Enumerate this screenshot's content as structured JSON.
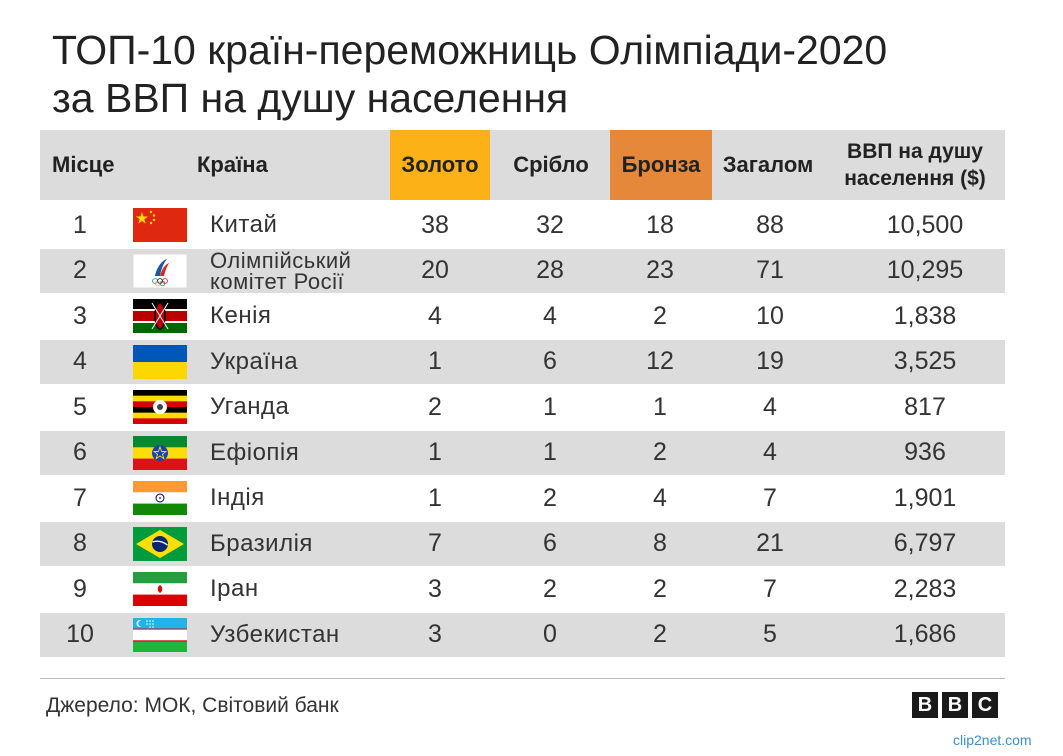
{
  "title_line1": "ТОП-10 країн-переможниць Олімпіади-2020",
  "title_line2": "за ВВП на душу населення",
  "headers": {
    "place": "Місце",
    "country": "Країна",
    "gold": "Золото",
    "silver": "Срібло",
    "bronze": "Бронза",
    "total": "Загалом",
    "gdp_line1": "ВВП на душу",
    "gdp_line2": "населення ($)"
  },
  "colors": {
    "gold_header": "#fcb116",
    "bronze_header": "#e5883a",
    "row_shade": "#dcdcdc"
  },
  "chart_data": {
    "type": "table",
    "title": "ТОП-10 країн-переможниць Олімпіади-2020 за ВВП на душу населення",
    "columns": [
      "Місце",
      "Країна",
      "Золото",
      "Срібло",
      "Бронза",
      "Загалом",
      "ВВП на душу населення ($)"
    ],
    "rows": [
      {
        "place": "1",
        "country": "Китай",
        "flag": "flag-china-icon",
        "gold": "38",
        "silver": "32",
        "bronze": "18",
        "total": "88",
        "gdp": "10,500"
      },
      {
        "place": "2",
        "country": "Олімпійський комітет Росії",
        "country_l1": "Олімпійський",
        "country_l2": "комітет Росії",
        "flag": "roc-emblem-icon",
        "gold": "20",
        "silver": "28",
        "bronze": "23",
        "total": "71",
        "gdp": "10,295"
      },
      {
        "place": "3",
        "country": "Кенія",
        "flag": "flag-kenya-icon",
        "gold": "4",
        "silver": "4",
        "bronze": "2",
        "total": "10",
        "gdp": "1,838"
      },
      {
        "place": "4",
        "country": "Україна",
        "flag": "flag-ukraine-icon",
        "gold": "1",
        "silver": "6",
        "bronze": "12",
        "total": "19",
        "gdp": "3,525"
      },
      {
        "place": "5",
        "country": "Уганда",
        "flag": "flag-uganda-icon",
        "gold": "2",
        "silver": "1",
        "bronze": "1",
        "total": "4",
        "gdp": "817"
      },
      {
        "place": "6",
        "country": "Ефіопія",
        "flag": "flag-ethiopia-icon",
        "gold": "1",
        "silver": "1",
        "bronze": "2",
        "total": "4",
        "gdp": "936"
      },
      {
        "place": "7",
        "country": "Індія",
        "flag": "flag-india-icon",
        "gold": "1",
        "silver": "2",
        "bronze": "4",
        "total": "7",
        "gdp": "1,901"
      },
      {
        "place": "8",
        "country": "Бразилія",
        "flag": "flag-brazil-icon",
        "gold": "7",
        "silver": "6",
        "bronze": "8",
        "total": "21",
        "gdp": "6,797"
      },
      {
        "place": "9",
        "country": "Іран",
        "flag": "flag-iran-icon",
        "gold": "3",
        "silver": "2",
        "bronze": "2",
        "total": "7",
        "gdp": "2,283"
      },
      {
        "place": "10",
        "country": "Узбекистан",
        "flag": "flag-uzbekistan-icon",
        "gold": "3",
        "silver": "0",
        "bronze": "2",
        "total": "5",
        "gdp": "1,686"
      }
    ]
  },
  "source": "Джерело: МОК, Світовий банк",
  "bbc_letters": [
    "B",
    "B",
    "C"
  ],
  "watermark": "clip2net.com"
}
